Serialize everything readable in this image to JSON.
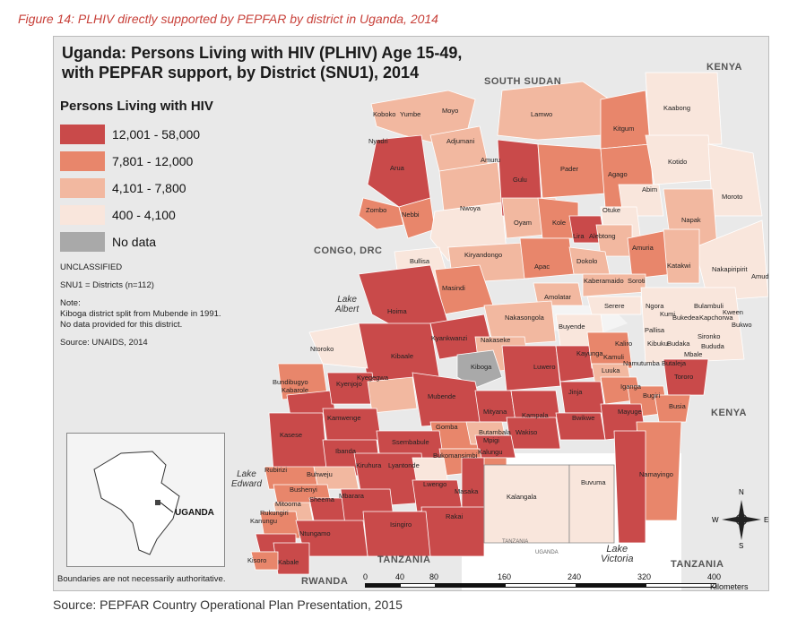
{
  "figure_caption": "Figure 14: PLHIV directly supported by PEPFAR by district in Uganda, 2014",
  "map_title_line1": "Uganda:  Persons Living with HIV (PLHIV) Age 15-49,",
  "map_title_line2": "with PEPFAR support, by District (SNU1), 2014",
  "legend": {
    "title": "Persons Living with HIV",
    "items": [
      {
        "label": "12,001 - 58,000",
        "color": "#c94a4a"
      },
      {
        "label": "7,801 - 12,000",
        "color": "#e8866b"
      },
      {
        "label": "4,101 - 7,800",
        "color": "#f2b8a0"
      },
      {
        "label": "400 - 4,100",
        "color": "#f9e6dc"
      },
      {
        "label": "No data",
        "color": "#a9a9a9"
      }
    ]
  },
  "notes": {
    "classification": "UNCLASSIFIED",
    "snu": "SNU1 = Districts (n=112)",
    "note_heading": "Note:",
    "note_line1": "Kiboga district split from Mubende in 1991.",
    "note_line2": "No data provided for this district.",
    "source": "Source: UNAIDS, 2014"
  },
  "boundary_note": "Boundaries are not necessarily authoritative.",
  "countries": {
    "south_sudan": "SOUTH SUDAN",
    "kenya_top": "KENYA",
    "kenya_right": "KENYA",
    "congo": "CONGO, DRC",
    "tanzania": "TANZANIA",
    "tanzania_right": "TANZANIA",
    "rwanda": "RWANDA"
  },
  "lakes": {
    "albert_1": "Lake",
    "albert_2": "Albert",
    "edward_1": "Lake",
    "edward_2": "Edward",
    "victoria_1": "Lake",
    "victoria_2": "Victoria"
  },
  "inset_label": "UGANDA",
  "scale": {
    "ticks": [
      "0",
      "40",
      "80",
      "160",
      "240",
      "320",
      "400"
    ],
    "unit": "Kilometers"
  },
  "compass": {
    "n": "N",
    "s": "S",
    "e": "E",
    "w": "W"
  },
  "districts": {
    "koboko": "Koboko",
    "yumbe": "Yumbe",
    "moyo": "Moyo",
    "lamwo": "Lamwo",
    "kaabong": "Kaabong",
    "nyadri": "Nyadri",
    "adjumani": "Adjumani",
    "kitgum": "Kitgum",
    "arua": "Arua",
    "amuru": "Amuru",
    "gulu": "Gulu",
    "pader": "Pader",
    "agago": "Agago",
    "kotido": "Kotido",
    "abim": "Abim",
    "moroto": "Moroto",
    "zombo": "Zombo",
    "nebbi": "Nebbi",
    "nwoya": "Nwoya",
    "oyam": "Oyam",
    "kole": "Kole",
    "otuke": "Otuke",
    "napak": "Napak",
    "lira": "Lira",
    "alebtong": "Alebtong",
    "amuria": "Amuria",
    "kiryandongo": "Kiryandongo",
    "dokolo": "Dokolo",
    "katakwi": "Katakwi",
    "bullisa": "Bullisa",
    "apac": "Apac",
    "nakapiripirit": "Nakapiripirit",
    "amudat": "Amudat",
    "masindi": "Masindi",
    "kaberamaido": "Kaberamaido",
    "soroti": "Soroti",
    "amolatar": "Amolatar",
    "serere": "Serere",
    "ngora": "Ngora",
    "bulambuli": "Bulambuli",
    "kumi": "Kumi",
    "kween": "Kween",
    "bukedea": "Bukedea",
    "kapchorwa": "Kapchorwa",
    "bukwo": "Bukwo",
    "hoima": "Hoima",
    "nakasongola": "Nakasongola",
    "buyende": "Buyende",
    "pallisa": "Pallisa",
    "sironko": "Sironko",
    "kaliro": "Kaliro",
    "kibuku": "Kibuku",
    "budaka": "Budaka",
    "bududa": "Bududa",
    "mbale": "Mbale",
    "ntoroko": "Ntoroko",
    "kyankwanzi": "Kyankwanzi",
    "nakaseke": "Nakaseke",
    "kayunga": "Kayunga",
    "kamuli": "Kamuli",
    "namutumba": "Namutumba",
    "butaleja": "Butaleja",
    "kibaale": "Kibaale",
    "kiboga": "Kiboga",
    "luwero": "Luwero",
    "luuka": "Luuka",
    "tororo": "Tororo",
    "bundibugyo": "Bundibugyo",
    "kabarole": "Kabarole",
    "kyenjojo": "Kyenjojo",
    "kyegegwa": "Kyegegwa",
    "mubende": "Mubende",
    "jinja": "Jinja",
    "iganga": "Iganga",
    "bugiri": "Bugiri",
    "busia": "Busia",
    "mityana": "Mityana",
    "kampala": "Kampala",
    "bwikwe": "Bwikwe",
    "mayuge": "Mayuge",
    "kamwenge": "Kamwenge",
    "gomba": "Gomba",
    "butambala": "Butambala",
    "wakiso": "Wakiso",
    "kasese": "Kasese",
    "sembabule": "Ssembabule",
    "mpigi": "Mpigi",
    "ibanda": "Ibanda",
    "bukomansimbi": "Bukomansimbi",
    "kalungu": "Kalungu",
    "rubirizi": "Rubirizi",
    "buhweju": "Buhweju",
    "kiruhura": "Kiruhura",
    "lyantonde": "Lyantonde",
    "namayingo": "Namayingo",
    "kalangala": "Kalangala",
    "buvuma": "Buvuma",
    "bushenyi": "Bushenyi",
    "lwengo": "Lwengo",
    "mitooma": "Mitooma",
    "sheema": "Sheema",
    "mbarara": "Mbarara",
    "masaka": "Masaka",
    "rukungiri": "Rukungiri",
    "kanungu": "Kanungu",
    "isingiro": "Isingiro",
    "rakai": "Rakai",
    "ntungamo": "Ntungamo",
    "kisoro": "Kisoro",
    "kabale": "Kabale",
    "tanzania_small": "TANZANIA",
    "uganda_small": "UGANDA"
  }
}
